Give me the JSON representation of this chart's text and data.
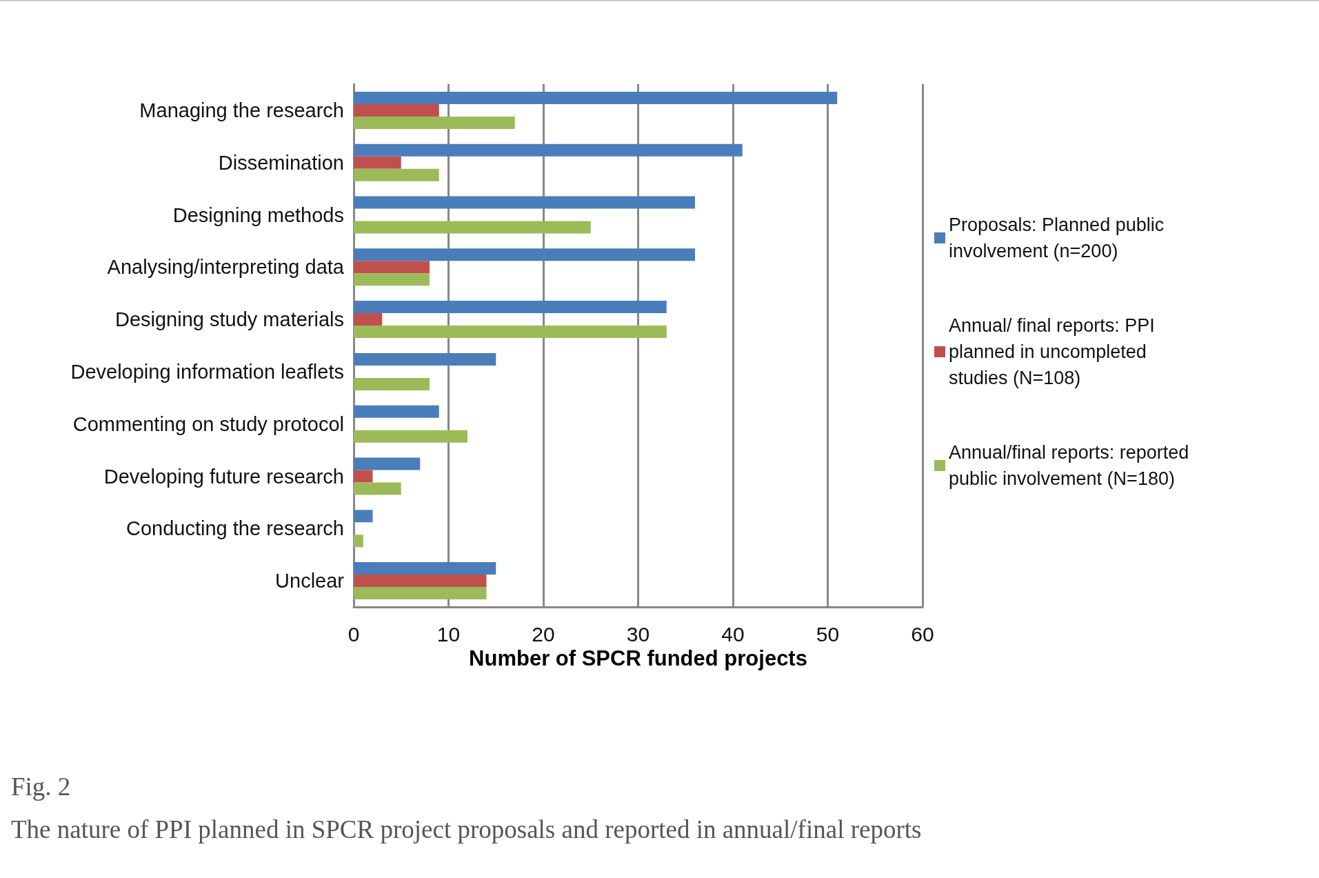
{
  "chart_data": {
    "type": "bar",
    "orientation": "horizontal",
    "categories": [
      "Managing the research",
      "Dissemination",
      "Designing methods",
      "Analysing/interpreting data",
      "Designing study materials",
      "Developing information leaflets",
      "Commenting on study protocol",
      "Developing future research",
      "Conducting the research",
      "Unclear"
    ],
    "series": [
      {
        "name": "Proposals: Planned public involvement (n=200)",
        "color": "#4a7ebb",
        "values": [
          51,
          41,
          36,
          36,
          33,
          15,
          9,
          7,
          2,
          15
        ]
      },
      {
        "name": "Annual/ final reports: PPI planned in uncompleted studies (N=108)",
        "color": "#c0504d",
        "values": [
          9,
          5,
          0,
          8,
          3,
          0,
          0,
          2,
          0,
          14
        ]
      },
      {
        "name": "Annual/final reports: reported public involvement (N=180)",
        "color": "#9bbb59",
        "values": [
          17,
          9,
          25,
          8,
          33,
          8,
          12,
          5,
          1,
          14
        ]
      }
    ],
    "xlabel": "Number of SPCR funded projects",
    "xlim": [
      0,
      60
    ],
    "xticks": [
      0,
      10,
      20,
      30,
      40,
      50,
      60
    ],
    "grid": "x",
    "legend": "right",
    "annotations": [
      "Fig. 2",
      "The nature of PPI planned in SPCR project proposals and reported in annual/final reports"
    ]
  }
}
